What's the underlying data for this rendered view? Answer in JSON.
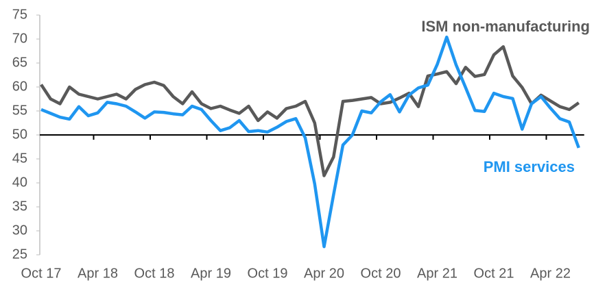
{
  "chart_data": {
    "type": "line",
    "categories": [
      "Oct 17",
      null,
      null,
      null,
      null,
      null,
      "Apr 18",
      null,
      null,
      null,
      null,
      null,
      "Oct 18",
      null,
      null,
      null,
      null,
      null,
      "Apr 19",
      null,
      null,
      null,
      null,
      null,
      "Oct 19",
      null,
      null,
      null,
      null,
      null,
      "Apr 20",
      null,
      null,
      null,
      null,
      null,
      "Oct 20",
      null,
      null,
      null,
      null,
      null,
      "Apr 21",
      null,
      null,
      null,
      null,
      null,
      "Oct 21",
      null,
      null,
      null,
      null,
      null,
      "Apr 22",
      null,
      null,
      null
    ],
    "series": [
      {
        "name": "ISM non-manufacturing",
        "color": "#595959",
        "values": [
          60.5,
          57.5,
          56.5,
          60,
          58.5,
          58,
          57.5,
          58,
          58.5,
          57.5,
          59.5,
          60.5,
          61,
          60.3,
          58,
          56.5,
          59,
          56.5,
          55.5,
          56,
          55.2,
          54.5,
          56,
          53,
          54.8,
          53.5,
          55.5,
          56,
          57,
          52.5,
          41.5,
          45.4,
          57,
          57.2,
          57.5,
          57.8,
          56.5,
          56.8,
          57.7,
          58.7,
          55.9,
          62.3,
          62.7,
          63.2,
          60.7,
          64.1,
          62.2,
          62.6,
          66.7,
          68.4,
          62.3,
          59.9,
          56.5,
          58.3,
          57.1,
          55.9,
          55.3,
          56.7
        ]
      },
      {
        "name": "PMI services",
        "color": "#1f96f0",
        "values": [
          55.3,
          54.5,
          53.7,
          53.3,
          55.9,
          54,
          54.6,
          56.8,
          56.5,
          56,
          54.8,
          53.5,
          54.8,
          54.7,
          54.4,
          54.2,
          56,
          55.3,
          53,
          50.9,
          51.5,
          53,
          50.7,
          50.9,
          50.6,
          51.6,
          52.8,
          53.4,
          49.4,
          39.8,
          26.7,
          37.5,
          47.9,
          50,
          55,
          54.6,
          56.9,
          58.4,
          54.8,
          58.3,
          59.8,
          60.4,
          64.7,
          70.4,
          64.6,
          59.9,
          55.1,
          54.9,
          58.7,
          58,
          57.6,
          51.2,
          56.5,
          58,
          55.6,
          53.4,
          52.7,
          47.3
        ]
      }
    ],
    "ylim": [
      25,
      75
    ],
    "yticks": [
      25,
      30,
      35,
      40,
      45,
      50,
      55,
      60,
      65,
      70,
      75
    ],
    "x_axis_at": 50,
    "grid": false
  }
}
